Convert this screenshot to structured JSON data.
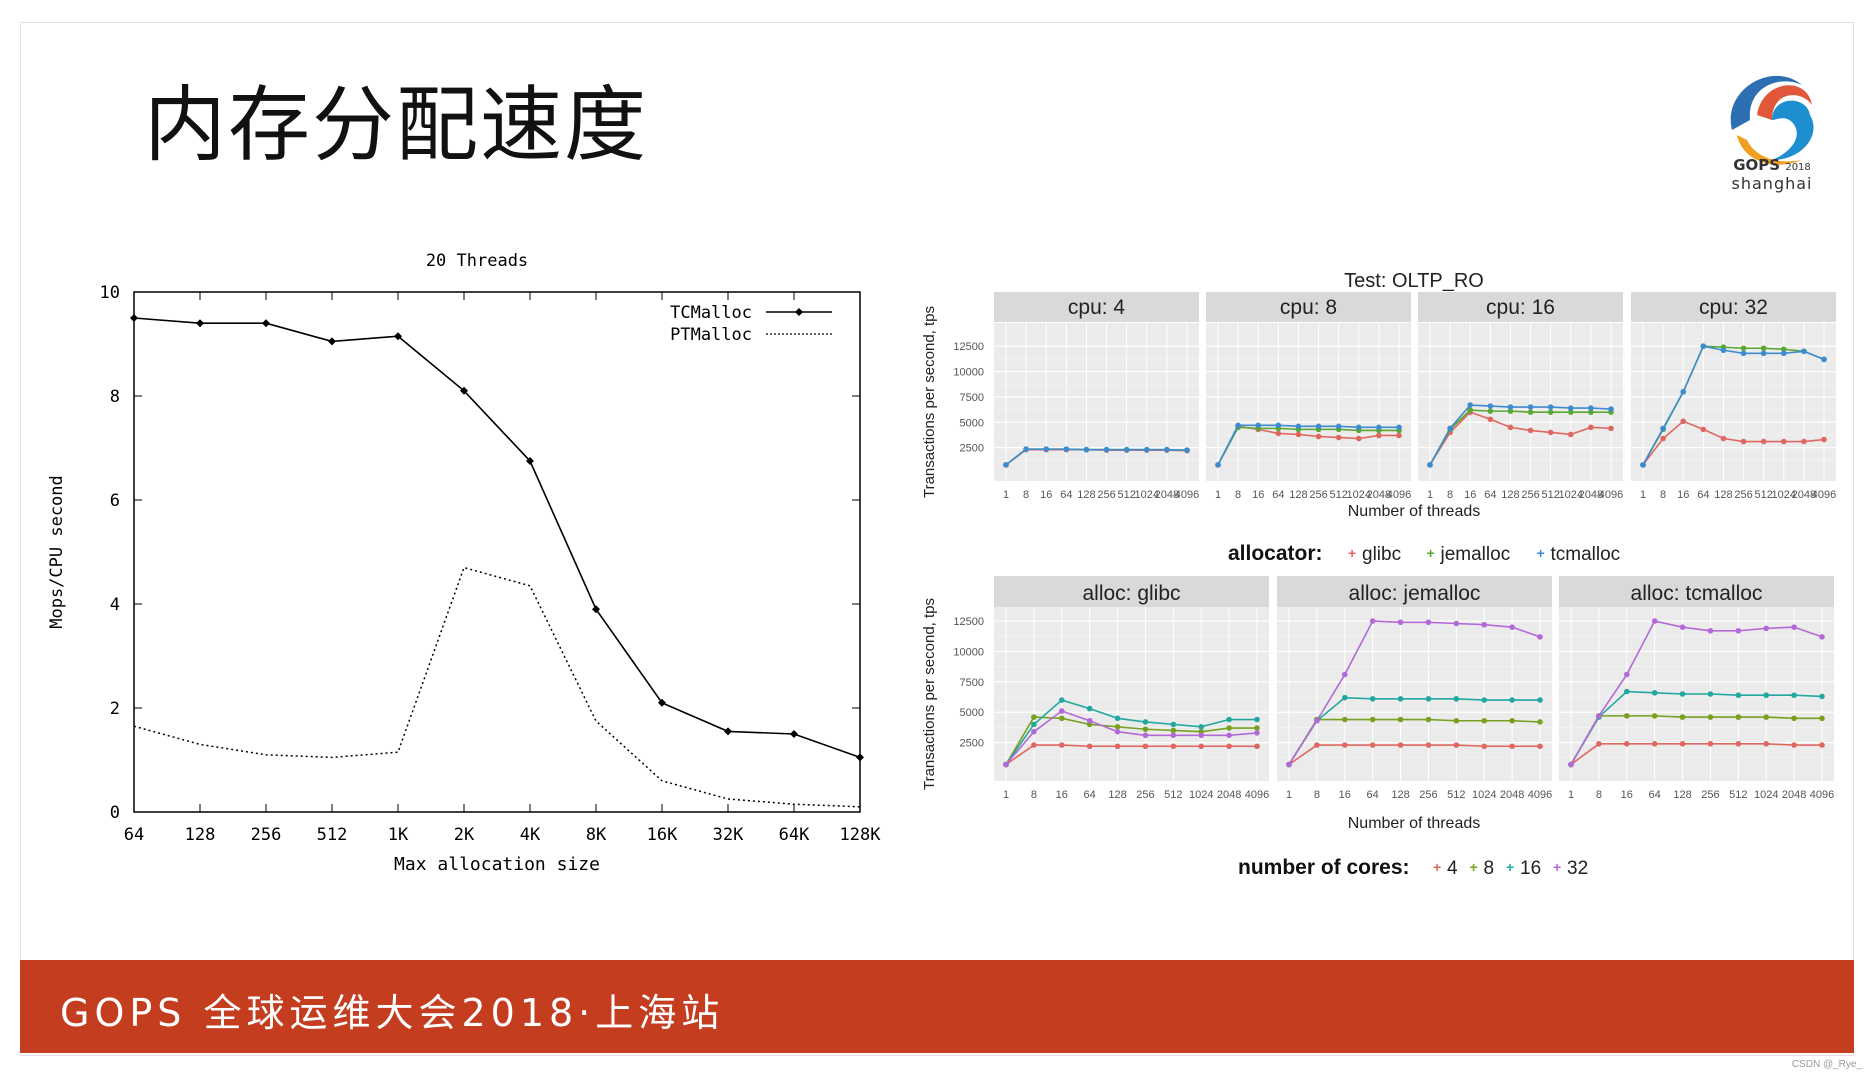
{
  "slide": {
    "title": "内存分配速度",
    "footer": "GOPS 全球运维大会2018·上海站",
    "logo": {
      "line1": "GOPS",
      "year": "2018",
      "line2": "shanghai"
    },
    "watermark": "CSDN @_Rye_"
  },
  "chart_data": [
    {
      "type": "line",
      "title": "20 Threads",
      "xlabel": "Max allocation size",
      "ylabel": "Mops/CPU second",
      "categories": [
        "64",
        "128",
        "256",
        "512",
        "1K",
        "2K",
        "4K",
        "8K",
        "16K",
        "32K",
        "64K",
        "128K"
      ],
      "ylim": [
        0,
        10
      ],
      "yticks": [
        "0",
        "2",
        "4",
        "6",
        "8",
        "10"
      ],
      "legend_position": "top-right",
      "series": [
        {
          "name": "TCMalloc",
          "color": "#000000",
          "style": "solid-markers",
          "values": [
            9.5,
            9.4,
            9.4,
            9.05,
            9.15,
            8.1,
            6.75,
            3.9,
            2.1,
            1.55,
            1.5,
            1.05
          ]
        },
        {
          "name": "PTMalloc",
          "color": "#000000",
          "style": "dotted",
          "values": [
            1.65,
            1.3,
            1.1,
            1.05,
            1.15,
            4.7,
            4.35,
            1.75,
            0.6,
            0.25,
            0.15,
            0.1
          ]
        }
      ]
    },
    {
      "type": "line",
      "title": "Test: OLTP_RO",
      "xlabel": "Number of threads",
      "ylabel": "Transactions per second, tps",
      "x": [
        "1",
        "8",
        "16",
        "64",
        "128",
        "256",
        "512",
        "1024",
        "2048",
        "4096"
      ],
      "ylim": [
        0,
        14000
      ],
      "yticks": [
        "2500",
        "5000",
        "7500",
        "10000",
        "12500"
      ],
      "legend_title": "allocator:",
      "legend_position": "bottom",
      "colors": {
        "glibc": "#e0675f",
        "jemalloc": "#5aa832",
        "tcmalloc": "#3f8bd0"
      },
      "panels": [
        {
          "label": "cpu: 4",
          "series": [
            {
              "name": "glibc",
              "values": [
                800,
                2300,
                2300,
                2300,
                2300,
                2250,
                2250,
                2250,
                2250,
                2200
              ]
            },
            {
              "name": "jemalloc",
              "values": [
                800,
                2350,
                2350,
                2350,
                2300,
                2300,
                2300,
                2300,
                2300,
                2250
              ]
            },
            {
              "name": "tcmalloc",
              "values": [
                800,
                2350,
                2350,
                2350,
                2300,
                2300,
                2300,
                2300,
                2300,
                2250
              ]
            }
          ]
        },
        {
          "label": "cpu: 8",
          "series": [
            {
              "name": "glibc",
              "values": [
                800,
                4600,
                4300,
                3900,
                3800,
                3600,
                3500,
                3400,
                3700,
                3700
              ]
            },
            {
              "name": "jemalloc",
              "values": [
                800,
                4500,
                4400,
                4400,
                4300,
                4300,
                4300,
                4200,
                4200,
                4200
              ]
            },
            {
              "name": "tcmalloc",
              "values": [
                800,
                4700,
                4700,
                4700,
                4600,
                4600,
                4600,
                4500,
                4500,
                4500
              ]
            }
          ]
        },
        {
          "label": "cpu: 16",
          "series": [
            {
              "name": "glibc",
              "values": [
                800,
                4000,
                6000,
                5300,
                4500,
                4200,
                4000,
                3800,
                4500,
                4400
              ]
            },
            {
              "name": "jemalloc",
              "values": [
                800,
                4300,
                6200,
                6100,
                6100,
                6000,
                6000,
                6000,
                6000,
                6000
              ]
            },
            {
              "name": "tcmalloc",
              "values": [
                800,
                4400,
                6700,
                6600,
                6500,
                6500,
                6500,
                6400,
                6400,
                6300
              ]
            }
          ]
        },
        {
          "label": "cpu: 32",
          "series": [
            {
              "name": "glibc",
              "values": [
                800,
                3400,
                5100,
                4300,
                3400,
                3100,
                3100,
                3100,
                3100,
                3300
              ]
            },
            {
              "name": "jemalloc",
              "values": [
                800,
                4300,
                8000,
                12500,
                12400,
                12300,
                12300,
                12200,
                12000,
                11200
              ]
            },
            {
              "name": "tcmalloc",
              "values": [
                800,
                4400,
                8000,
                12500,
                12100,
                11800,
                11800,
                11800,
                12000,
                11200
              ]
            }
          ]
        }
      ]
    },
    {
      "type": "line",
      "xlabel": "Number of threads",
      "ylabel": "Transactions per second, tps",
      "x": [
        "1",
        "8",
        "16",
        "64",
        "128",
        "256",
        "512",
        "1024",
        "2048",
        "4096"
      ],
      "ylim": [
        0,
        13000
      ],
      "yticks": [
        "2500",
        "5000",
        "7500",
        "10000",
        "12500"
      ],
      "legend_title": "number of cores:",
      "legend_position": "bottom",
      "colors": {
        "4": "#e0675f",
        "8": "#7aa020",
        "16": "#22a8a0",
        "32": "#b36ad8"
      },
      "panels": [
        {
          "label": "alloc: glibc",
          "series": [
            {
              "name": "4",
              "values": [
                700,
                2300,
                2300,
                2200,
                2200,
                2200,
                2200,
                2200,
                2200,
                2200
              ]
            },
            {
              "name": "8",
              "values": [
                700,
                4600,
                4500,
                4000,
                3800,
                3600,
                3500,
                3400,
                3700,
                3700
              ]
            },
            {
              "name": "16",
              "values": [
                700,
                4000,
                6000,
                5300,
                4500,
                4200,
                4000,
                3800,
                4400,
                4400
              ]
            },
            {
              "name": "32",
              "values": [
                700,
                3400,
                5100,
                4300,
                3400,
                3100,
                3100,
                3100,
                3100,
                3300
              ]
            }
          ]
        },
        {
          "label": "alloc: jemalloc",
          "series": [
            {
              "name": "4",
              "values": [
                700,
                2300,
                2300,
                2300,
                2300,
                2300,
                2300,
                2200,
                2200,
                2200
              ]
            },
            {
              "name": "8",
              "values": [
                700,
                4400,
                4400,
                4400,
                4400,
                4400,
                4300,
                4300,
                4300,
                4200
              ]
            },
            {
              "name": "16",
              "values": [
                700,
                4300,
                6200,
                6100,
                6100,
                6100,
                6100,
                6000,
                6000,
                6000
              ]
            },
            {
              "name": "32",
              "values": [
                700,
                4300,
                8100,
                12500,
                12400,
                12400,
                12300,
                12200,
                12000,
                11200
              ]
            }
          ]
        },
        {
          "label": "alloc: tcmalloc",
          "series": [
            {
              "name": "4",
              "values": [
                700,
                2400,
                2400,
                2400,
                2400,
                2400,
                2400,
                2400,
                2300,
                2300
              ]
            },
            {
              "name": "8",
              "values": [
                700,
                4700,
                4700,
                4700,
                4600,
                4600,
                4600,
                4600,
                4500,
                4500
              ]
            },
            {
              "name": "16",
              "values": [
                700,
                4600,
                6700,
                6600,
                6500,
                6500,
                6400,
                6400,
                6400,
                6300
              ]
            },
            {
              "name": "32",
              "values": [
                700,
                4700,
                8100,
                12500,
                12000,
                11700,
                11700,
                11900,
                12000,
                11200
              ]
            }
          ]
        }
      ]
    }
  ]
}
